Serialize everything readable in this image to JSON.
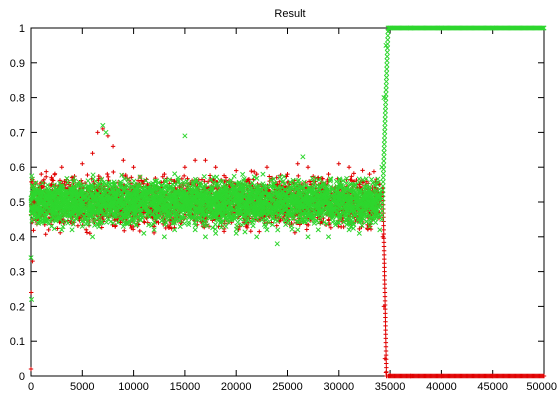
{
  "chart_data": {
    "type": "scatter",
    "title": "Result",
    "xlabel": "",
    "ylabel": "",
    "xlim": [
      0,
      50000
    ],
    "ylim": [
      0,
      1
    ],
    "x_ticks": [
      0,
      5000,
      10000,
      15000,
      20000,
      25000,
      30000,
      35000,
      40000,
      45000,
      50000
    ],
    "y_ticks": [
      0,
      0.1,
      0.2,
      0.3,
      0.4,
      0.5,
      0.6,
      0.7,
      0.8,
      0.9,
      1
    ],
    "grid": false,
    "legend": "none",
    "series": [
      {
        "marker": "+",
        "color": "#e00000",
        "points": [
          [
            0,
            0.02
          ],
          [
            20,
            0.24
          ],
          [
            150,
            0.33
          ],
          [
            300,
            0.5
          ],
          [
            1000,
            0.58
          ],
          [
            2000,
            0.55
          ],
          [
            3000,
            0.6
          ],
          [
            4000,
            0.57
          ],
          [
            5000,
            0.61
          ],
          [
            6000,
            0.64
          ],
          [
            6500,
            0.7
          ],
          [
            7000,
            0.71
          ],
          [
            7500,
            0.69
          ],
          [
            8000,
            0.66
          ],
          [
            9000,
            0.62
          ],
          [
            10000,
            0.6
          ],
          [
            11000,
            0.47
          ],
          [
            12000,
            0.43
          ],
          [
            13000,
            0.58
          ],
          [
            14000,
            0.56
          ],
          [
            15000,
            0.6
          ],
          [
            16000,
            0.62
          ],
          [
            17000,
            0.62
          ],
          [
            18000,
            0.6
          ],
          [
            19000,
            0.57
          ],
          [
            20000,
            0.59
          ],
          [
            21000,
            0.43
          ],
          [
            22000,
            0.58
          ],
          [
            23000,
            0.6
          ],
          [
            24000,
            0.55
          ],
          [
            25000,
            0.58
          ],
          [
            26000,
            0.61
          ],
          [
            27000,
            0.6
          ],
          [
            28000,
            0.57
          ],
          [
            29000,
            0.58
          ],
          [
            30000,
            0.61
          ],
          [
            31000,
            0.6
          ],
          [
            32000,
            0.55
          ],
          [
            33000,
            0.58
          ],
          [
            34000,
            0.55
          ],
          [
            34300,
            0.4
          ],
          [
            34400,
            0.2
          ],
          [
            34500,
            0.05
          ],
          [
            34600,
            0.01
          ],
          [
            35000,
            0.002
          ],
          [
            37000,
            0.0
          ],
          [
            40000,
            0.0
          ],
          [
            45000,
            0.0
          ],
          [
            50000,
            0.0
          ]
        ]
      },
      {
        "marker": "x",
        "color": "#2ed62e",
        "points": [
          [
            0,
            0.34
          ],
          [
            50,
            0.22
          ],
          [
            300,
            0.45
          ],
          [
            1000,
            0.44
          ],
          [
            2000,
            0.43
          ],
          [
            3000,
            0.42
          ],
          [
            4000,
            0.42
          ],
          [
            5000,
            0.43
          ],
          [
            6000,
            0.4
          ],
          [
            7000,
            0.72
          ],
          [
            7300,
            0.7
          ],
          [
            8000,
            0.44
          ],
          [
            9000,
            0.43
          ],
          [
            10000,
            0.44
          ],
          [
            11000,
            0.41
          ],
          [
            12000,
            0.42
          ],
          [
            13000,
            0.4
          ],
          [
            14000,
            0.42
          ],
          [
            15000,
            0.69
          ],
          [
            16000,
            0.42
          ],
          [
            17000,
            0.4
          ],
          [
            18000,
            0.41
          ],
          [
            19000,
            0.43
          ],
          [
            20000,
            0.41
          ],
          [
            21000,
            0.44
          ],
          [
            22000,
            0.4
          ],
          [
            23000,
            0.42
          ],
          [
            24000,
            0.38
          ],
          [
            25000,
            0.44
          ],
          [
            26000,
            0.42
          ],
          [
            26500,
            0.63
          ],
          [
            27000,
            0.4
          ],
          [
            28000,
            0.42
          ],
          [
            29000,
            0.4
          ],
          [
            30000,
            0.44
          ],
          [
            31000,
            0.42
          ],
          [
            32000,
            0.41
          ],
          [
            33000,
            0.43
          ],
          [
            34000,
            0.42
          ],
          [
            34200,
            0.6
          ],
          [
            34400,
            0.8
          ],
          [
            34600,
            0.95
          ],
          [
            34800,
            0.99
          ],
          [
            35000,
            1.0
          ],
          [
            37000,
            1.0
          ],
          [
            40000,
            1.0
          ],
          [
            45000,
            1.0
          ],
          [
            50000,
            1.0
          ]
        ]
      }
    ],
    "band": {
      "noise_region": {
        "x_range": [
          0,
          34000
        ],
        "center": 0.5,
        "spread": 0.06
      }
    }
  }
}
